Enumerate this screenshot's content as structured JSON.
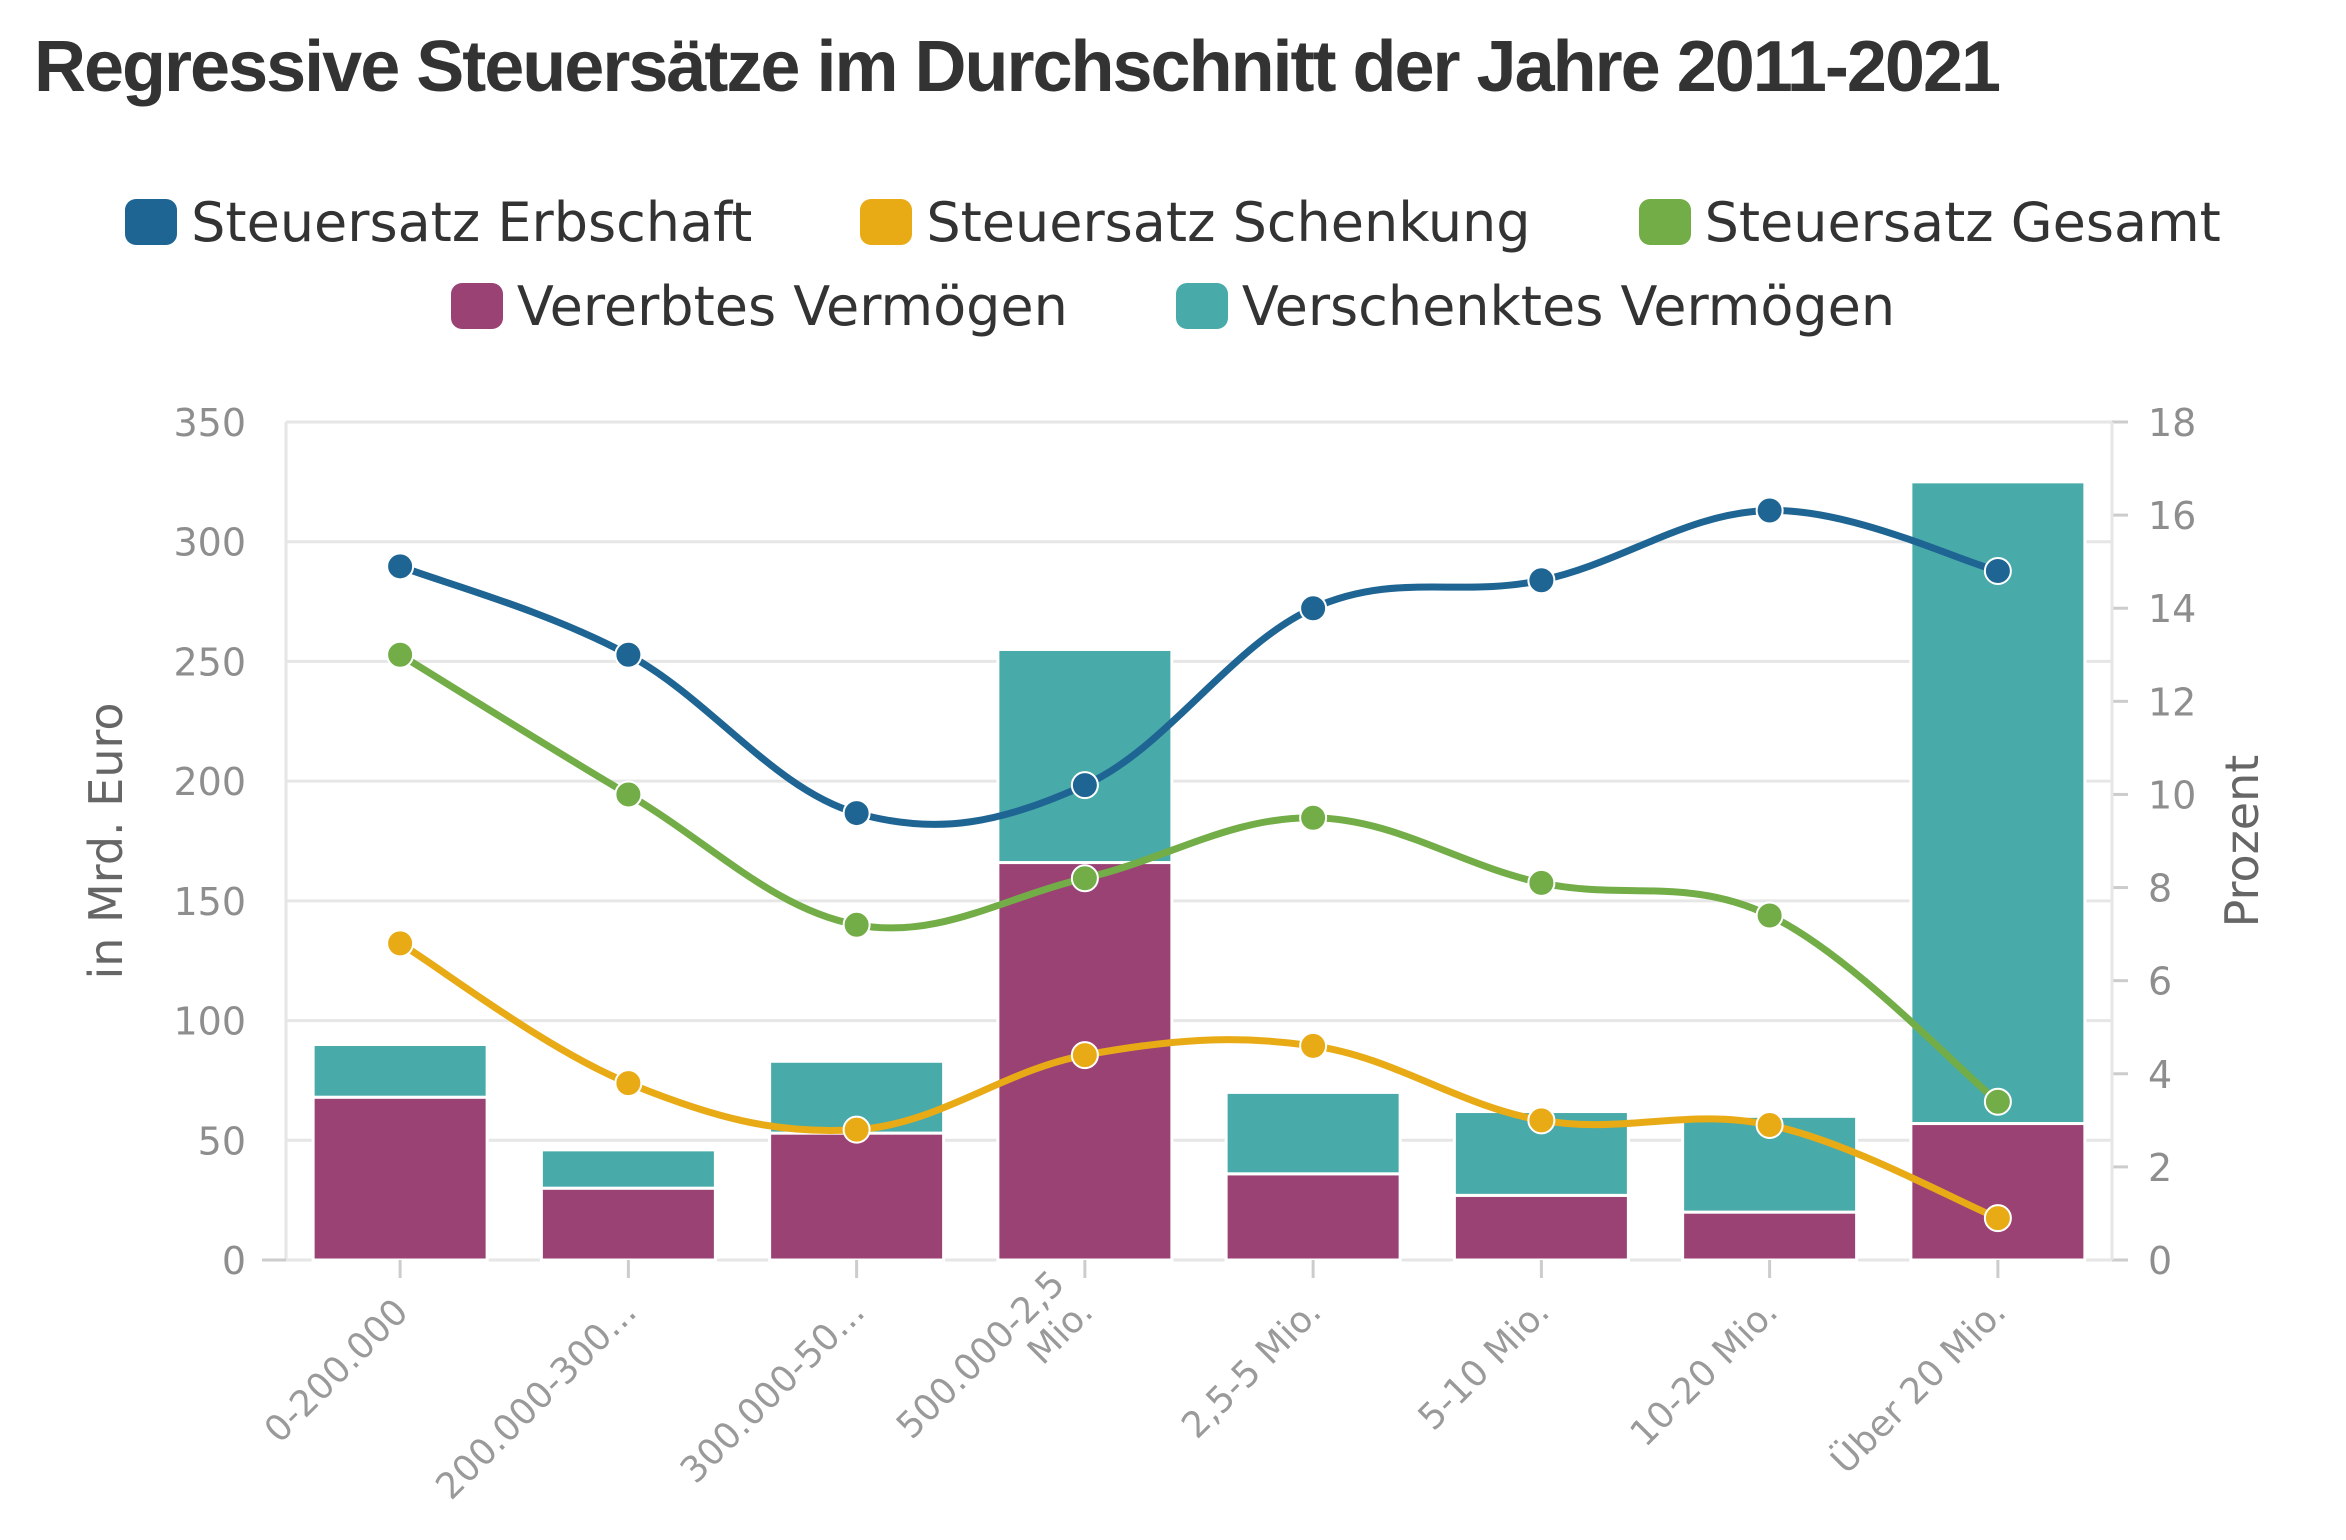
{
  "chart_data": {
    "type": "bar",
    "title": "Regressive Steuersätze im Durchschnitt der Jahre 2011-2021",
    "categories": [
      "0-200.000",
      "200.000-300...",
      "300.000-50...",
      "500.000-2,5 Mio.",
      "2,5-5 Mio.",
      "5-10 Mio.",
      "10-20 Mio.",
      "Über 20 Mio."
    ],
    "category_lines": [
      [
        "0-200.000"
      ],
      [
        "200.000-300..."
      ],
      [
        "300.000-50..."
      ],
      [
        "500.000-2,5",
        "Mio."
      ],
      [
        "2,5-5 Mio."
      ],
      [
        "5-10 Mio."
      ],
      [
        "10-20 Mio."
      ],
      [
        "Über 20 Mio."
      ]
    ],
    "bar_series": [
      {
        "name": "Vererbtes Vermögen",
        "color": "#9b4274",
        "values": [
          68,
          30,
          53,
          166,
          36,
          27,
          20,
          57
        ]
      },
      {
        "name": "Verschenktes Vermögen",
        "color": "#48aaa9",
        "values": [
          22,
          16,
          30,
          89,
          34,
          35,
          40,
          268
        ]
      }
    ],
    "line_series": [
      {
        "name": "Steuersatz Erbschaft",
        "color": "#1f6594",
        "values": [
          14.9,
          13.0,
          9.6,
          10.2,
          14.0,
          14.6,
          16.1,
          14.8
        ]
      },
      {
        "name": "Steuersatz Schenkung",
        "color": "#e8ab16",
        "values": [
          6.8,
          3.8,
          2.8,
          4.4,
          4.6,
          3.0,
          2.9,
          0.9
        ]
      },
      {
        "name": "Steuersatz Gesamt",
        "color": "#73ad47",
        "values": [
          13.0,
          10.0,
          7.2,
          8.2,
          9.5,
          8.1,
          7.4,
          3.4
        ]
      }
    ],
    "legend_rows": [
      [
        {
          "label": "Steuersatz Erbschaft",
          "color": "#1f6594"
        },
        {
          "label": "Steuersatz Schenkung",
          "color": "#e8ab16"
        },
        {
          "label": "Steuersatz Gesamt",
          "color": "#73ad47"
        }
      ],
      [
        {
          "label": "Vererbtes Vermögen",
          "color": "#9b4274"
        },
        {
          "label": "Verschenktes Vermögen",
          "color": "#48aaa9"
        }
      ]
    ],
    "y_left": {
      "label": "in Mrd. Euro",
      "min": 0,
      "max": 350,
      "ticks": [
        0,
        50,
        100,
        150,
        200,
        250,
        300,
        350
      ]
    },
    "y_right": {
      "label": "Prozent",
      "min": 0,
      "max": 18,
      "ticks": [
        0,
        2,
        4,
        6,
        8,
        10,
        12,
        14,
        16,
        18
      ]
    },
    "grid": true,
    "legend_position": "top"
  }
}
